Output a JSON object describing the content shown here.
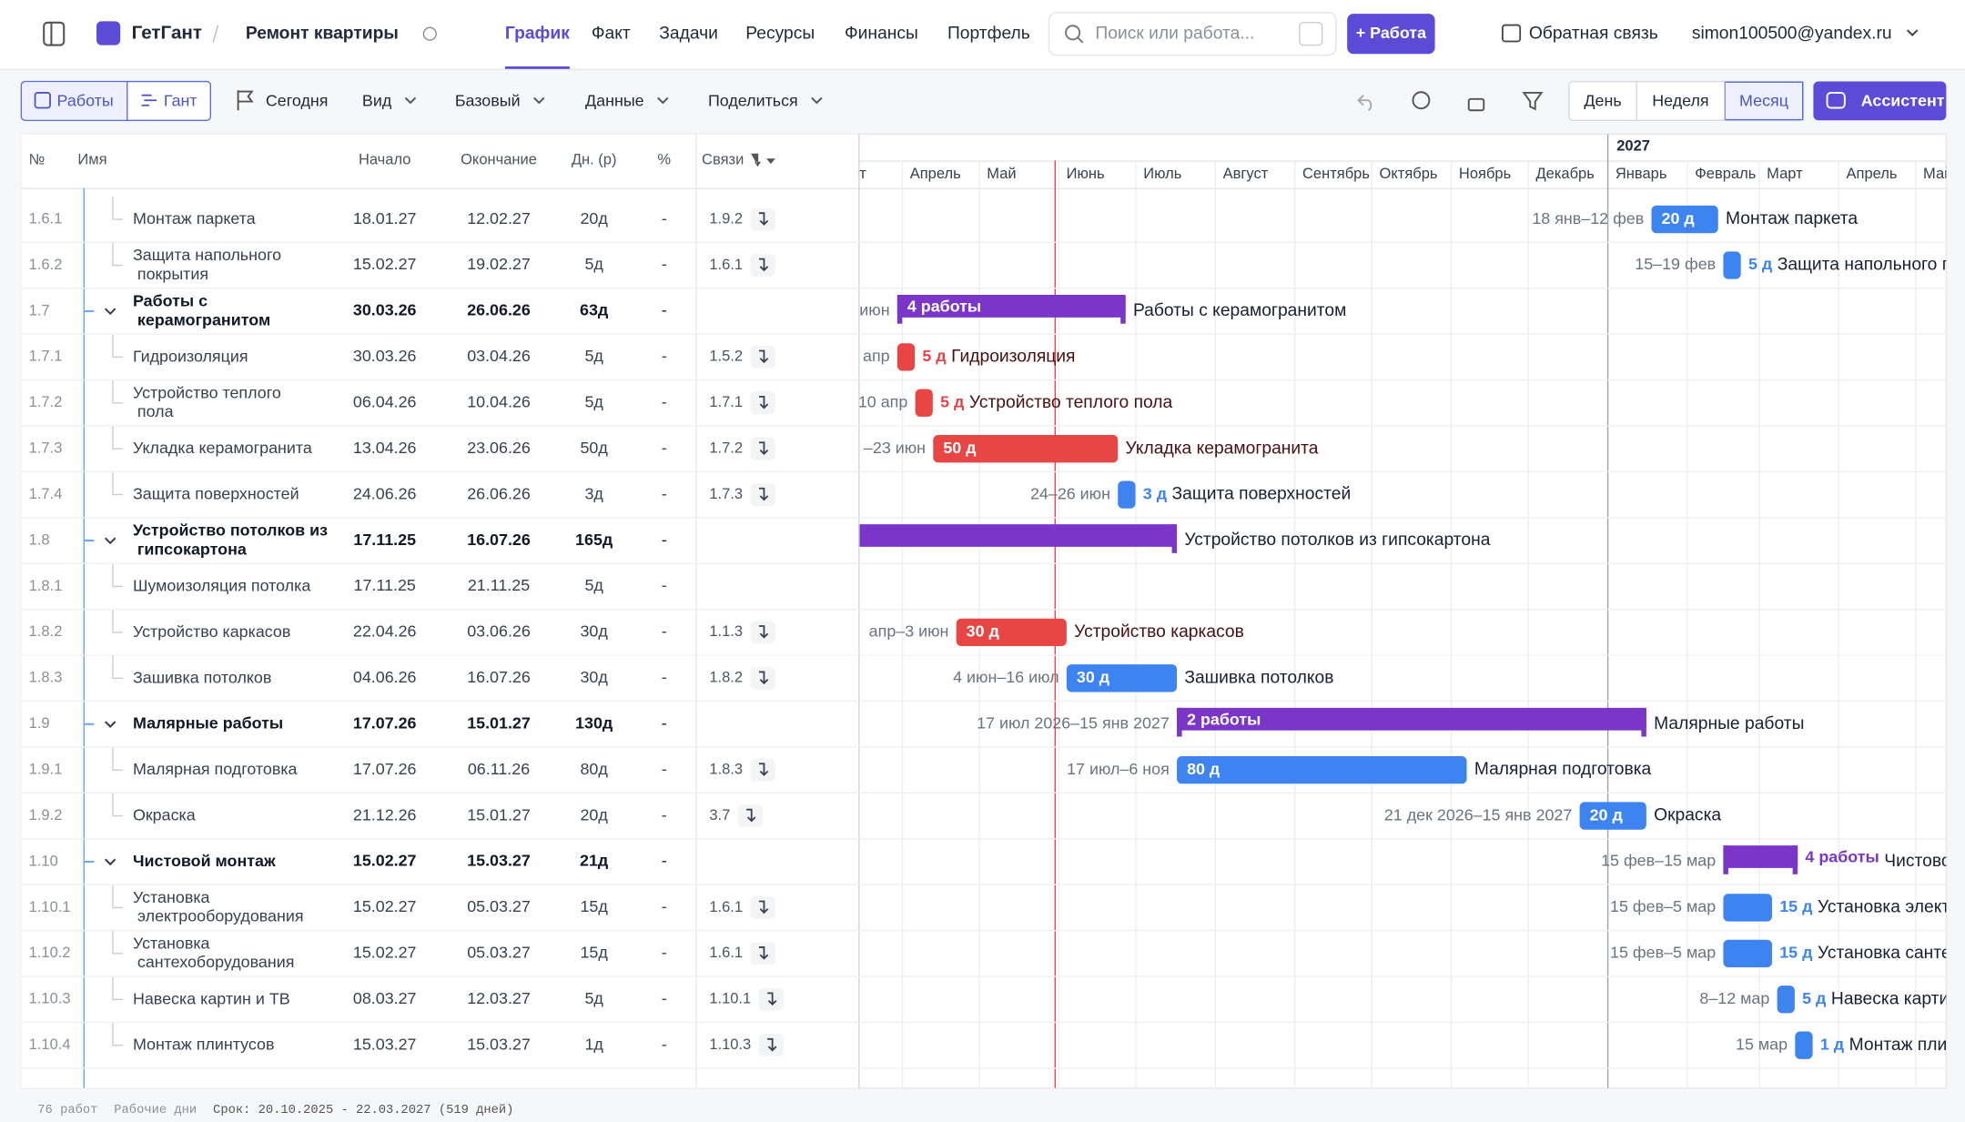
{
  "header": {
    "app": "ГетГант",
    "project": "Ремонт квартиры",
    "tabs": [
      "График",
      "Факт",
      "Задачи",
      "Ресурсы",
      "Финансы",
      "Портфель"
    ],
    "active_tab": "График",
    "search": "Поиск или работа...",
    "add": "+ Работа",
    "feedback": "Обратная связь",
    "user": "simon100500@yandex.ru"
  },
  "toolbar": {
    "view_toggle": [
      "Работы",
      "Гант"
    ],
    "today": "Сегодня",
    "menus": [
      "Вид",
      "Базовый",
      "Данные",
      "Поделиться"
    ],
    "scale": [
      "День",
      "Неделя",
      "Месяц"
    ],
    "active_scale": "Месяц",
    "assistant": "Ассистент"
  },
  "table": {
    "columns": [
      "№",
      "Имя",
      "Начало",
      "Окончание",
      "Дн. (р)",
      "%",
      "Связи"
    ],
    "rows": [
      {
        "num": "1.6.1",
        "name": "Монтаж паркета",
        "start": "18.01.27",
        "end": "12.02.27",
        "dur": "20д",
        "pct": "-",
        "link": "1.9.2",
        "bar": {
          "dur": "20 д",
          "label": "Монтаж паркета",
          "range": "18 янв–12 фев",
          "color": "#3d84f0"
        }
      },
      {
        "num": "1.6.2",
        "name": "Защита напольного покрытия",
        "start": "15.02.27",
        "end": "19.02.27",
        "dur": "5д",
        "pct": "-",
        "link": "1.6.1",
        "bar": {
          "dur": "5 д",
          "label": "Защита напольного покрытия",
          "range": "15–19 фев",
          "color": "#3d84f0"
        }
      },
      {
        "num": "1.7",
        "name": "Работы с керамогранитом",
        "start": "30.03.26",
        "end": "26.06.26",
        "dur": "63д",
        "pct": "-",
        "group": true,
        "bar": {
          "dur": "4 работы",
          "label": "Работы с керамогранитом",
          "range": "июн",
          "color": "#7b35c9"
        }
      },
      {
        "num": "1.7.1",
        "name": "Гидроизоляция",
        "start": "30.03.26",
        "end": "03.04.26",
        "dur": "5д",
        "pct": "-",
        "link": "1.5.2",
        "bar": {
          "dur": "5 д",
          "label": "Гидроизоляция",
          "range": "апр",
          "color": "#e84545"
        }
      },
      {
        "num": "1.7.2",
        "name": "Устройство теплого пола",
        "start": "06.04.26",
        "end": "10.04.26",
        "dur": "5д",
        "pct": "-",
        "link": "1.7.1",
        "bar": {
          "dur": "5 д",
          "label": "Устройство теплого пола",
          "range": "10 апр",
          "color": "#e84545"
        }
      },
      {
        "num": "1.7.3",
        "name": "Укладка керамогранита",
        "start": "13.04.26",
        "end": "23.06.26",
        "dur": "50д",
        "pct": "-",
        "link": "1.7.2",
        "bar": {
          "dur": "50 д",
          "label": "Укладка керамогранита",
          "range": "–23 июн",
          "color": "#e84545"
        }
      },
      {
        "num": "1.7.4",
        "name": "Защита поверхностей",
        "start": "24.06.26",
        "end": "26.06.26",
        "dur": "3д",
        "pct": "-",
        "link": "1.7.3",
        "bar": {
          "dur": "3 д",
          "label": "Защита поверхностей",
          "range": "24–26 июн",
          "color": "#3d84f0"
        }
      },
      {
        "num": "1.8",
        "name": "Устройство потолков из гипсокартона",
        "start": "17.11.25",
        "end": "16.07.26",
        "dur": "165д",
        "pct": "-",
        "group": true,
        "bar": {
          "label": "Устройство потолков из гипсокартона",
          "color": "#7b35c9"
        }
      },
      {
        "num": "1.8.1",
        "name": "Шумоизоляция потолка",
        "start": "17.11.25",
        "end": "21.11.25",
        "dur": "5д",
        "pct": "-"
      },
      {
        "num": "1.8.2",
        "name": "Устройство каркасов",
        "start": "22.04.26",
        "end": "03.06.26",
        "dur": "30д",
        "pct": "-",
        "link": "1.1.3",
        "bar": {
          "dur": "30 д",
          "label": "Устройство каркасов",
          "range": "апр–3 июн",
          "color": "#e84545"
        }
      },
      {
        "num": "1.8.3",
        "name": "Зашивка потолков",
        "start": "04.06.26",
        "end": "16.07.26",
        "dur": "30д",
        "pct": "-",
        "link": "1.8.2",
        "bar": {
          "dur": "30 д",
          "label": "Зашивка потолков",
          "range": "4 июн–16 июл",
          "color": "#3d84f0"
        }
      },
      {
        "num": "1.9",
        "name": "Малярные работы",
        "start": "17.07.26",
        "end": "15.01.27",
        "dur": "130д",
        "pct": "-",
        "group": true,
        "bar": {
          "dur": "2 работы",
          "label": "Малярные работы",
          "range": "17 июл 2026–15 янв 2027",
          "color": "#7b35c9"
        }
      },
      {
        "num": "1.9.1",
        "name": "Малярная подготовка",
        "start": "17.07.26",
        "end": "06.11.26",
        "dur": "80д",
        "pct": "-",
        "link": "1.8.3",
        "bar": {
          "dur": "80 д",
          "label": "Малярная подготовка",
          "range": "17 июл–6 ноя",
          "color": "#3d84f0"
        }
      },
      {
        "num": "1.9.2",
        "name": "Окраска",
        "start": "21.12.26",
        "end": "15.01.27",
        "dur": "20д",
        "pct": "-",
        "link": "3.7",
        "bar": {
          "dur": "20 д",
          "label": "Окраска",
          "range": "21 дек 2026–15 янв 2027",
          "color": "#3d84f0"
        }
      },
      {
        "num": "1.10",
        "name": "Чистовой монтаж",
        "start": "15.02.27",
        "end": "15.03.27",
        "dur": "21д",
        "pct": "-",
        "group": true,
        "bar": {
          "dur": "4 работы",
          "label": "Чистовой монтаж",
          "range": "15 фев–15 мар",
          "color": "#7b35c9"
        }
      },
      {
        "num": "1.10.1",
        "name": "Установка электрооборудования",
        "start": "15.02.27",
        "end": "05.03.27",
        "dur": "15д",
        "pct": "-",
        "link": "1.6.1",
        "bar": {
          "dur": "15 д",
          "label": "Установка электрооборудования",
          "range": "15 фев–5 мар",
          "color": "#3d84f0"
        }
      },
      {
        "num": "1.10.2",
        "name": "Установка сантехоборудования",
        "start": "15.02.27",
        "end": "05.03.27",
        "dur": "15д",
        "pct": "-",
        "link": "1.6.1",
        "bar": {
          "dur": "15 д",
          "label": "Установка сантехоборудования",
          "range": "15 фев–5 мар",
          "color": "#3d84f0"
        }
      },
      {
        "num": "1.10.3",
        "name": "Навеска картин и ТВ",
        "start": "08.03.27",
        "end": "12.03.27",
        "dur": "5д",
        "pct": "-",
        "link": "1.10.1",
        "bar": {
          "dur": "5 д",
          "label": "Навеска картин и ТВ",
          "range": "8–12 мар",
          "color": "#3d84f0"
        }
      },
      {
        "num": "1.10.4",
        "name": "Монтаж плинтусов",
        "start": "15.03.27",
        "end": "15.03.27",
        "dur": "1д",
        "pct": "-",
        "link": "1.10.3",
        "bar": {
          "dur": "1 д",
          "label": "Монтаж плинтусов",
          "range": "15 мар",
          "color": "#3d84f0"
        }
      }
    ]
  },
  "timeline": {
    "year": "2027",
    "months": [
      "Март",
      "Апрель",
      "Май",
      "Июнь",
      "Июль",
      "Август",
      "Сентябрь",
      "Октябрь",
      "Ноябрь",
      "Декабрь",
      "Январь",
      "Февраль",
      "Март",
      "Апрель",
      "Май"
    ]
  },
  "footer": {
    "count": "76 работ",
    "mode": "Рабочие дни",
    "term": "Срок: 20.10.2025 - 22.03.2027 (519 дней)"
  }
}
